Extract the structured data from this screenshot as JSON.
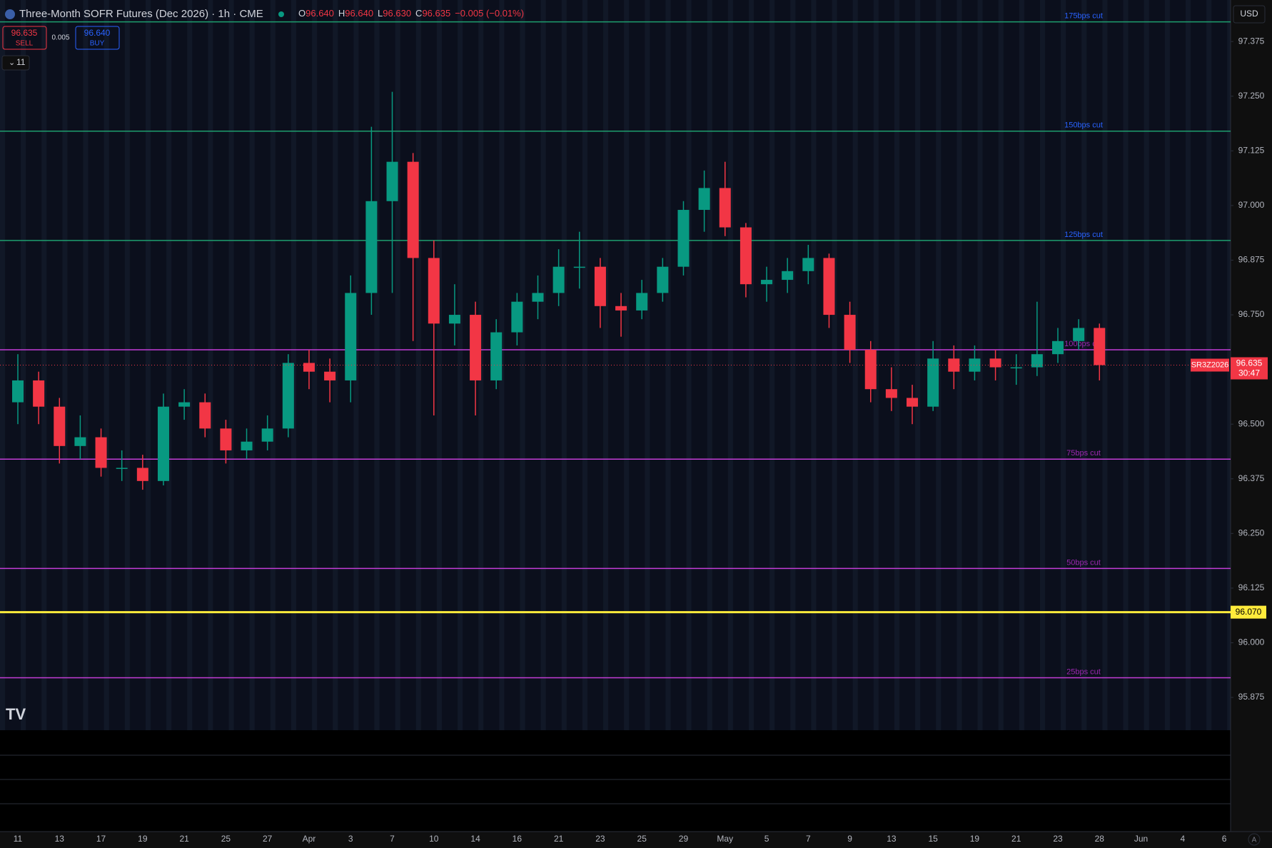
{
  "header": {
    "title": "Three-Month SOFR Futures (Dec 2026) · 1h · CME",
    "ohlc": [
      {
        "key": "O",
        "value": "96.640"
      },
      {
        "key": "H",
        "value": "96.640"
      },
      {
        "key": "L",
        "value": "96.630"
      },
      {
        "key": "C",
        "value": "96.635"
      }
    ],
    "change": "−0.005 (−0.01%)",
    "sell": {
      "price": "96.635",
      "label": "SELL"
    },
    "spread": "0.005",
    "buy": {
      "price": "96.640",
      "label": "BUY"
    },
    "indicators": "11",
    "currency": "USD",
    "auto": "A"
  },
  "chart_data": {
    "type": "candlestick",
    "categories": [
      "11",
      null,
      "13",
      null,
      "17",
      null,
      "19",
      null,
      "21",
      null,
      "25",
      null,
      "27",
      null,
      "Apr",
      null,
      "3",
      null,
      "7",
      null,
      "10",
      null,
      "14",
      null,
      "16",
      null,
      "21",
      null,
      "23",
      null,
      "25",
      null,
      "29",
      null,
      "May",
      null,
      "5",
      null,
      "7",
      null,
      "9",
      null,
      "13",
      null,
      "15",
      null,
      "19",
      null,
      "21",
      null,
      "23",
      null,
      "28",
      null,
      "Jun",
      null,
      "4",
      null,
      "6"
    ],
    "open": [
      96.55,
      96.6,
      96.54,
      96.45,
      96.47,
      96.4,
      96.4,
      96.37,
      96.54,
      96.55,
      96.49,
      96.44,
      96.46,
      96.49,
      96.64,
      96.62,
      96.6,
      96.8,
      97.01,
      97.1,
      96.88,
      96.73,
      96.75,
      96.6,
      96.71,
      96.78,
      96.8,
      96.86,
      96.86,
      96.77,
      96.76,
      96.8,
      96.86,
      96.99,
      97.04,
      96.95,
      96.82,
      96.83,
      96.85,
      96.88,
      96.75,
      96.67,
      96.58,
      96.56,
      96.54,
      96.65,
      96.62,
      96.65,
      96.63,
      96.63,
      96.66,
      96.69,
      96.72,
      null,
      null,
      null,
      null,
      null,
      null
    ],
    "high": [
      96.66,
      96.62,
      96.56,
      96.52,
      96.49,
      96.44,
      96.43,
      96.57,
      96.58,
      96.57,
      96.51,
      96.49,
      96.52,
      96.66,
      96.67,
      96.65,
      96.84,
      97.18,
      97.26,
      97.12,
      96.92,
      96.82,
      96.78,
      96.74,
      96.8,
      96.84,
      96.9,
      96.94,
      96.88,
      96.8,
      96.83,
      96.88,
      97.01,
      97.08,
      97.1,
      96.96,
      96.86,
      96.88,
      96.91,
      96.89,
      96.78,
      96.69,
      96.63,
      96.59,
      96.69,
      96.68,
      96.68,
      96.67,
      96.66,
      96.78,
      96.72,
      96.74,
      96.73,
      null,
      null,
      null,
      null,
      null,
      null
    ],
    "low": [
      96.5,
      96.5,
      96.41,
      96.42,
      96.38,
      96.37,
      96.35,
      96.36,
      96.51,
      96.47,
      96.41,
      96.42,
      96.44,
      96.47,
      96.58,
      96.55,
      96.55,
      96.75,
      96.8,
      96.69,
      96.52,
      96.68,
      96.52,
      96.58,
      96.68,
      96.74,
      96.77,
      96.81,
      96.72,
      96.7,
      96.74,
      96.78,
      96.84,
      96.94,
      96.93,
      96.79,
      96.78,
      96.8,
      96.82,
      96.72,
      96.64,
      96.55,
      96.53,
      96.5,
      96.53,
      96.58,
      96.6,
      96.6,
      96.59,
      96.61,
      96.64,
      96.67,
      96.6,
      null,
      null,
      null,
      null,
      null,
      null
    ],
    "close": [
      96.6,
      96.54,
      96.45,
      96.47,
      96.4,
      96.4,
      96.37,
      96.54,
      96.55,
      96.49,
      96.44,
      96.46,
      96.49,
      96.64,
      96.62,
      96.6,
      96.8,
      97.01,
      97.1,
      96.88,
      96.73,
      96.75,
      96.6,
      96.71,
      96.78,
      96.8,
      96.86,
      96.86,
      96.77,
      96.76,
      96.8,
      96.86,
      96.99,
      97.04,
      96.95,
      96.82,
      96.83,
      96.85,
      96.88,
      96.75,
      96.67,
      96.58,
      96.56,
      96.54,
      96.65,
      96.62,
      96.65,
      96.63,
      96.63,
      96.66,
      96.69,
      96.72,
      96.635,
      null,
      null,
      null,
      null,
      null,
      null
    ],
    "up_color": "#089981",
    "down_color": "#f23645",
    "ylim": [
      95.8,
      97.47
    ],
    "yticks": [
      95.875,
      {
        "value": 96.0,
        "label": "96.000"
      },
      96.125,
      {
        "value": 96.25,
        "label": "96.250"
      },
      96.375,
      {
        "value": 96.5,
        "label": "96.500"
      },
      {
        "value": 96.75,
        "label": "96.750"
      },
      96.875,
      {
        "value": 97.0,
        "label": "97.000"
      },
      97.125,
      {
        "value": 97.25,
        "label": "97.250"
      },
      97.375
    ],
    "grid": false,
    "levels": [
      {
        "label": "175bps cut",
        "value": 97.42,
        "color": "#1e9e6e",
        "label_color": "#2962ff"
      },
      {
        "label": "150bps cut",
        "value": 97.17,
        "color": "#1e9e6e",
        "label_color": "#2962ff"
      },
      {
        "label": "125bps cut",
        "value": 96.92,
        "color": "#1e9e6e",
        "label_color": "#2962ff"
      },
      {
        "label": "100bps cut",
        "value": 96.67,
        "color": "#c33dd6",
        "label_color": "#9c27b0"
      },
      {
        "label": "75bps cut",
        "value": 96.42,
        "color": "#c33dd6",
        "label_color": "#9c27b0"
      },
      {
        "label": "50bps cut",
        "value": 96.17,
        "color": "#c33dd6",
        "label_color": "#9c27b0"
      },
      {
        "label": "25bps cut",
        "value": 95.92,
        "color": "#c33dd6",
        "label_color": "#9c27b0"
      }
    ],
    "alert_line": {
      "value": 96.07,
      "label": "96.070",
      "color": "#ffeb3b"
    },
    "last_price": 96.635,
    "symbol": "SR3Z2026",
    "countdown": "30:47"
  }
}
